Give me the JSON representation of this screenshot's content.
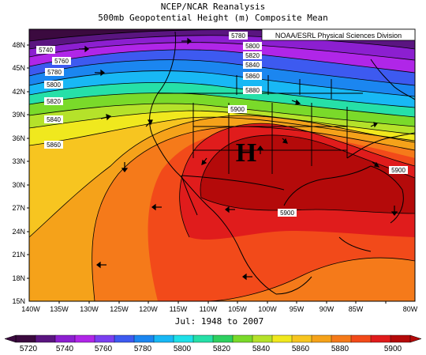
{
  "header": {
    "title": "NCEP/NCAR Reanalysis",
    "subtitle": "500mb Geopotential Height (m) Composite Mean"
  },
  "map": {
    "attribution": "NOAA/ESRL Physical Sciences Division",
    "high_marker": "H",
    "lat_ticks": [
      "48N",
      "45N",
      "42N",
      "39N",
      "36N",
      "33N",
      "30N",
      "27N",
      "24N",
      "21N",
      "18N",
      "15N"
    ],
    "lon_ticks": [
      "140W",
      "135W",
      "130W",
      "125W",
      "120W",
      "115W",
      "110W",
      "105W",
      "100W",
      "95W",
      "90W",
      "85W",
      "80W"
    ],
    "contour_labels": [
      "5740",
      "5760",
      "5780",
      "5800",
      "5820",
      "5840",
      "5860",
      "5780",
      "5800",
      "5820",
      "5840",
      "5860",
      "5880",
      "5900",
      "5900",
      "5900"
    ],
    "date_range": "Jul: 1948 to 2007"
  },
  "colorbar": {
    "labels": [
      "5720",
      "5740",
      "5760",
      "5780",
      "5800",
      "5820",
      "5840",
      "5860",
      "5880",
      "5900"
    ],
    "colors": [
      "#3b0a3f",
      "#5a1580",
      "#8c1fd0",
      "#b026e8",
      "#7a3ff0",
      "#3d5af0",
      "#1b86f0",
      "#18b8f5",
      "#1ee0e8",
      "#26e0a8",
      "#2ed060",
      "#7ada2a",
      "#b5e22a",
      "#f0e81e",
      "#f7c520",
      "#f5a21a",
      "#f57a1a",
      "#f24a1a",
      "#e01c1c",
      "#b40a0a"
    ]
  }
}
